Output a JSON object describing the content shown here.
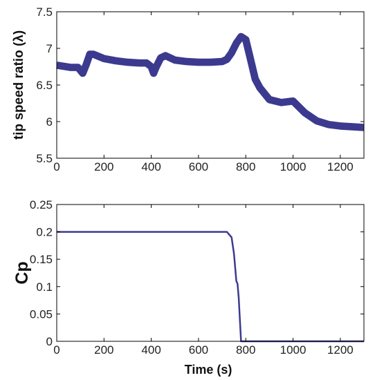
{
  "chart_data": [
    {
      "type": "line",
      "ylabel": "tip speed ratio (λ)",
      "xlabel": "",
      "xlim": [
        0,
        1300
      ],
      "ylim": [
        5.5,
        7.5
      ],
      "xticks": [
        "0",
        "200",
        "400",
        "600",
        "800",
        "1000",
        "1200"
      ],
      "xtick_values": [
        0,
        200,
        400,
        600,
        800,
        1000,
        1200
      ],
      "yticks": [
        "5.5",
        "6",
        "6.5",
        "7",
        "7.5"
      ],
      "ytick_values": [
        5.5,
        6,
        6.5,
        7,
        7.5
      ],
      "grid": false,
      "line_color": "#3c3a8f",
      "band_halfwidth": 0.05,
      "series": [
        {
          "x": [
            0,
            60,
            90,
            110,
            125,
            140,
            155,
            200,
            250,
            300,
            350,
            380,
            400,
            410,
            420,
            440,
            460,
            500,
            550,
            600,
            650,
            700,
            720,
            740,
            760,
            780,
            800,
            820,
            840,
            860,
            880,
            900,
            950,
            1000,
            1050,
            1100,
            1150,
            1200,
            1250,
            1300
          ],
          "values": [
            6.77,
            6.74,
            6.74,
            6.66,
            6.78,
            6.92,
            6.92,
            6.86,
            6.83,
            6.81,
            6.8,
            6.8,
            6.75,
            6.66,
            6.74,
            6.87,
            6.9,
            6.84,
            6.82,
            6.81,
            6.81,
            6.82,
            6.85,
            6.94,
            7.07,
            7.16,
            7.12,
            6.85,
            6.58,
            6.46,
            6.38,
            6.3,
            6.26,
            6.28,
            6.12,
            6.01,
            5.96,
            5.94,
            5.93,
            5.92
          ]
        }
      ]
    },
    {
      "type": "line",
      "ylabel": "Cp",
      "xlabel": "Time (s)",
      "xlim": [
        0,
        1300
      ],
      "ylim": [
        0,
        0.25
      ],
      "xticks": [
        "0",
        "200",
        "400",
        "600",
        "800",
        "1000",
        "1200"
      ],
      "xtick_values": [
        0,
        200,
        400,
        600,
        800,
        1000,
        1200
      ],
      "yticks": [
        "0",
        "0.05",
        "0.1",
        "0.15",
        "0.2",
        "0.25"
      ],
      "ytick_values": [
        0,
        0.05,
        0.1,
        0.15,
        0.2,
        0.25
      ],
      "grid": false,
      "line_color": "#3c3a8f",
      "series": [
        {
          "x": [
            0,
            100,
            400,
            720,
            740,
            750,
            760,
            765,
            770,
            780,
            800,
            1000,
            1300
          ],
          "values": [
            0.2,
            0.2,
            0.2,
            0.2,
            0.19,
            0.16,
            0.11,
            0.105,
            0.08,
            0.0,
            0.0,
            0.0,
            0.0
          ]
        }
      ]
    }
  ]
}
